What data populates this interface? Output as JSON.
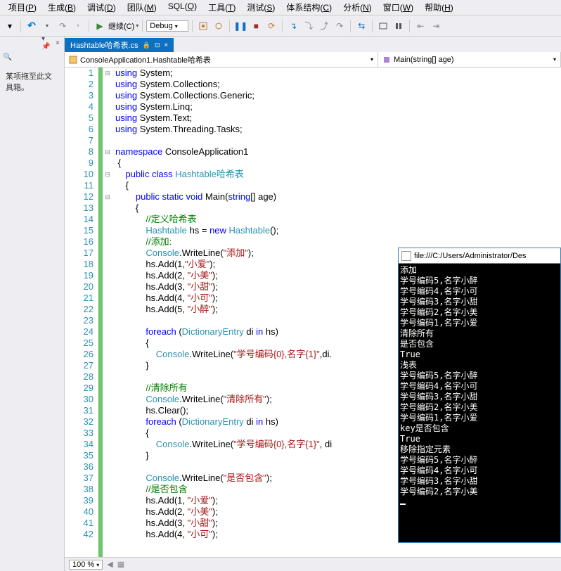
{
  "menu": {
    "items": [
      {
        "label": "项目",
        "key": "P"
      },
      {
        "label": "生成",
        "key": "B"
      },
      {
        "label": "调试",
        "key": "D"
      },
      {
        "label": "团队",
        "key": "M"
      },
      {
        "label": "SQL",
        "key": "Q"
      },
      {
        "label": "工具",
        "key": "T"
      },
      {
        "label": "测试",
        "key": "S"
      },
      {
        "label": "体系结构",
        "key": "C"
      },
      {
        "label": "分析",
        "key": "N"
      },
      {
        "label": "窗口",
        "key": "W"
      },
      {
        "label": "帮助",
        "key": "H"
      }
    ]
  },
  "toolbar": {
    "continue_label": "继续(C)",
    "debug_label": "Debug"
  },
  "left_panel": {
    "search_icon": "search",
    "text": "某项拖至此文\n具箱。"
  },
  "tab": {
    "filename": "Hashtable哈希表.cs",
    "pin": "⊡",
    "close": "×"
  },
  "nav": {
    "class": "ConsoleApplication1.Hashtable哈希表",
    "method": "Main(string[] age)"
  },
  "code": {
    "lines": [
      {
        "n": 1,
        "fold": "⊟",
        "tokens": [
          [
            "kw",
            "using"
          ],
          [
            "",
            " System;"
          ]
        ]
      },
      {
        "n": 2,
        "fold": "",
        "tokens": [
          [
            "kw",
            "using"
          ],
          [
            "",
            " System.Collections;"
          ]
        ]
      },
      {
        "n": 3,
        "fold": "",
        "tokens": [
          [
            "kw",
            "using"
          ],
          [
            "",
            " System.Collections.Generic;"
          ]
        ]
      },
      {
        "n": 4,
        "fold": "",
        "tokens": [
          [
            "kw",
            "using"
          ],
          [
            "",
            " System.Linq;"
          ]
        ]
      },
      {
        "n": 5,
        "fold": "",
        "tokens": [
          [
            "kw",
            "using"
          ],
          [
            "",
            " System.Text;"
          ]
        ]
      },
      {
        "n": 6,
        "fold": "",
        "tokens": [
          [
            "kw",
            "using"
          ],
          [
            "",
            " System.Threading.Tasks;"
          ]
        ]
      },
      {
        "n": 7,
        "fold": "",
        "tokens": [
          [
            "",
            ""
          ]
        ]
      },
      {
        "n": 8,
        "fold": "⊟",
        "tokens": [
          [
            "kw",
            "namespace"
          ],
          [
            "",
            " ConsoleApplication1"
          ]
        ]
      },
      {
        "n": 9,
        "fold": "",
        "tokens": [
          [
            "",
            " {"
          ]
        ]
      },
      {
        "n": 10,
        "fold": "⊟",
        "tokens": [
          [
            "",
            "    "
          ],
          [
            "kw",
            "public"
          ],
          [
            "",
            " "
          ],
          [
            "kw",
            "class"
          ],
          [
            "",
            " "
          ],
          [
            "type",
            "Hashtable哈希表"
          ]
        ]
      },
      {
        "n": 11,
        "fold": "",
        "tokens": [
          [
            "",
            "    {"
          ]
        ]
      },
      {
        "n": 12,
        "fold": "⊟",
        "tokens": [
          [
            "",
            "        "
          ],
          [
            "kw",
            "public"
          ],
          [
            "",
            " "
          ],
          [
            "kw",
            "static"
          ],
          [
            "",
            " "
          ],
          [
            "kw",
            "void"
          ],
          [
            "",
            " Main("
          ],
          [
            "kw",
            "string"
          ],
          [
            "",
            "[] age)"
          ]
        ]
      },
      {
        "n": 13,
        "fold": "",
        "tokens": [
          [
            "",
            "        {"
          ]
        ]
      },
      {
        "n": 14,
        "fold": "",
        "tokens": [
          [
            "",
            "            "
          ],
          [
            "cmt",
            "//定义哈希表"
          ]
        ]
      },
      {
        "n": 15,
        "fold": "",
        "tokens": [
          [
            "",
            "            "
          ],
          [
            "type",
            "Hashtable"
          ],
          [
            "",
            " hs = "
          ],
          [
            "kw",
            "new"
          ],
          [
            "",
            " "
          ],
          [
            "type",
            "Hashtable"
          ],
          [
            "",
            "();"
          ]
        ]
      },
      {
        "n": 16,
        "fold": "",
        "tokens": [
          [
            "",
            "            "
          ],
          [
            "cmt",
            "//添加:"
          ]
        ]
      },
      {
        "n": 17,
        "fold": "",
        "tokens": [
          [
            "",
            "            "
          ],
          [
            "type",
            "Console"
          ],
          [
            "",
            ".WriteLine("
          ],
          [
            "str",
            "\"添加\""
          ],
          [
            "",
            ");"
          ]
        ]
      },
      {
        "n": 18,
        "fold": "",
        "tokens": [
          [
            "",
            "            hs.Add(1,"
          ],
          [
            "str",
            "\"小爱\""
          ],
          [
            "",
            ");"
          ]
        ]
      },
      {
        "n": 19,
        "fold": "",
        "tokens": [
          [
            "",
            "            hs.Add(2, "
          ],
          [
            "str",
            "\"小美\""
          ],
          [
            "",
            ");"
          ]
        ]
      },
      {
        "n": 20,
        "fold": "",
        "tokens": [
          [
            "",
            "            hs.Add(3, "
          ],
          [
            "str",
            "\"小甜\""
          ],
          [
            "",
            ");"
          ]
        ]
      },
      {
        "n": 21,
        "fold": "",
        "tokens": [
          [
            "",
            "            hs.Add(4, "
          ],
          [
            "str",
            "\"小可\""
          ],
          [
            "",
            ");"
          ]
        ]
      },
      {
        "n": 22,
        "fold": "",
        "tokens": [
          [
            "",
            "            hs.Add(5, "
          ],
          [
            "str",
            "\"小醉\""
          ],
          [
            "",
            ");"
          ]
        ]
      },
      {
        "n": 23,
        "fold": "",
        "tokens": [
          [
            "",
            ""
          ]
        ]
      },
      {
        "n": 24,
        "fold": "",
        "tokens": [
          [
            "",
            "            "
          ],
          [
            "kw",
            "foreach"
          ],
          [
            "",
            " ("
          ],
          [
            "type",
            "DictionaryEntry"
          ],
          [
            "",
            " di "
          ],
          [
            "kw",
            "in"
          ],
          [
            "",
            " hs)"
          ]
        ]
      },
      {
        "n": 25,
        "fold": "",
        "tokens": [
          [
            "",
            "            {"
          ]
        ]
      },
      {
        "n": 26,
        "fold": "",
        "tokens": [
          [
            "",
            "                "
          ],
          [
            "type",
            "Console"
          ],
          [
            "",
            ".WriteLine("
          ],
          [
            "str",
            "\"学号编码{0},名字{1}\""
          ],
          [
            "",
            ",di."
          ]
        ]
      },
      {
        "n": 27,
        "fold": "",
        "tokens": [
          [
            "",
            "            }"
          ]
        ]
      },
      {
        "n": 28,
        "fold": "",
        "tokens": [
          [
            "",
            ""
          ]
        ]
      },
      {
        "n": 29,
        "fold": "",
        "tokens": [
          [
            "",
            "            "
          ],
          [
            "cmt",
            "//清除所有"
          ]
        ]
      },
      {
        "n": 30,
        "fold": "",
        "tokens": [
          [
            "",
            "            "
          ],
          [
            "type",
            "Console"
          ],
          [
            "",
            ".WriteLine("
          ],
          [
            "str",
            "\"清除所有\""
          ],
          [
            "",
            ");"
          ]
        ]
      },
      {
        "n": 31,
        "fold": "",
        "tokens": [
          [
            "",
            "            hs.Clear();"
          ]
        ]
      },
      {
        "n": 32,
        "fold": "",
        "tokens": [
          [
            "",
            "            "
          ],
          [
            "kw",
            "foreach"
          ],
          [
            "",
            " ("
          ],
          [
            "type",
            "DictionaryEntry"
          ],
          [
            "",
            " di "
          ],
          [
            "kw",
            "in"
          ],
          [
            "",
            " hs)"
          ]
        ]
      },
      {
        "n": 33,
        "fold": "",
        "tokens": [
          [
            "",
            "            {"
          ]
        ]
      },
      {
        "n": 34,
        "fold": "",
        "tokens": [
          [
            "",
            "                "
          ],
          [
            "type",
            "Console"
          ],
          [
            "",
            ".WriteLine("
          ],
          [
            "str",
            "\"学号编码{0},名字{1}\""
          ],
          [
            "",
            ", di"
          ]
        ]
      },
      {
        "n": 35,
        "fold": "",
        "tokens": [
          [
            "",
            "            }"
          ]
        ]
      },
      {
        "n": 36,
        "fold": "",
        "tokens": [
          [
            "",
            ""
          ]
        ]
      },
      {
        "n": 37,
        "fold": "",
        "tokens": [
          [
            "",
            "            "
          ],
          [
            "type",
            "Console"
          ],
          [
            "",
            ".WriteLine("
          ],
          [
            "str",
            "\"是否包含\""
          ],
          [
            "",
            ");"
          ]
        ]
      },
      {
        "n": 38,
        "fold": "",
        "tokens": [
          [
            "",
            "            "
          ],
          [
            "cmt",
            "//是否包含"
          ]
        ]
      },
      {
        "n": 39,
        "fold": "",
        "tokens": [
          [
            "",
            "            hs.Add(1, "
          ],
          [
            "str",
            "\"小爱\""
          ],
          [
            "",
            ");"
          ]
        ]
      },
      {
        "n": 40,
        "fold": "",
        "tokens": [
          [
            "",
            "            hs.Add(2, "
          ],
          [
            "str",
            "\"小美\""
          ],
          [
            "",
            ");"
          ]
        ]
      },
      {
        "n": 41,
        "fold": "",
        "tokens": [
          [
            "",
            "            hs.Add(3, "
          ],
          [
            "str",
            "\"小甜\""
          ],
          [
            "",
            ");"
          ]
        ]
      },
      {
        "n": 42,
        "fold": "",
        "tokens": [
          [
            "",
            "            hs.Add(4, "
          ],
          [
            "str",
            "\"小可\""
          ],
          [
            "",
            ");"
          ]
        ]
      }
    ]
  },
  "zoom": {
    "value": "100 %"
  },
  "console": {
    "title": "file:///C:/Users/Administrator/Des",
    "lines": [
      "添加",
      "学号编码5,名字小醉",
      "学号编码4,名字小可",
      "学号编码3,名字小甜",
      "学号编码2,名字小美",
      "学号编码1,名字小爱",
      "清除所有",
      "是否包含",
      "True",
      "浅表",
      "学号编码5,名字小醉",
      "学号编码4,名字小可",
      "学号编码3,名字小甜",
      "学号编码2,名字小美",
      "学号编码1,名字小爱",
      "key是否包含",
      "True",
      "移除指定元素",
      "学号编码5,名字小醉",
      "学号编码4,名字小可",
      "学号编码3,名字小甜",
      "学号编码2,名字小美"
    ]
  }
}
